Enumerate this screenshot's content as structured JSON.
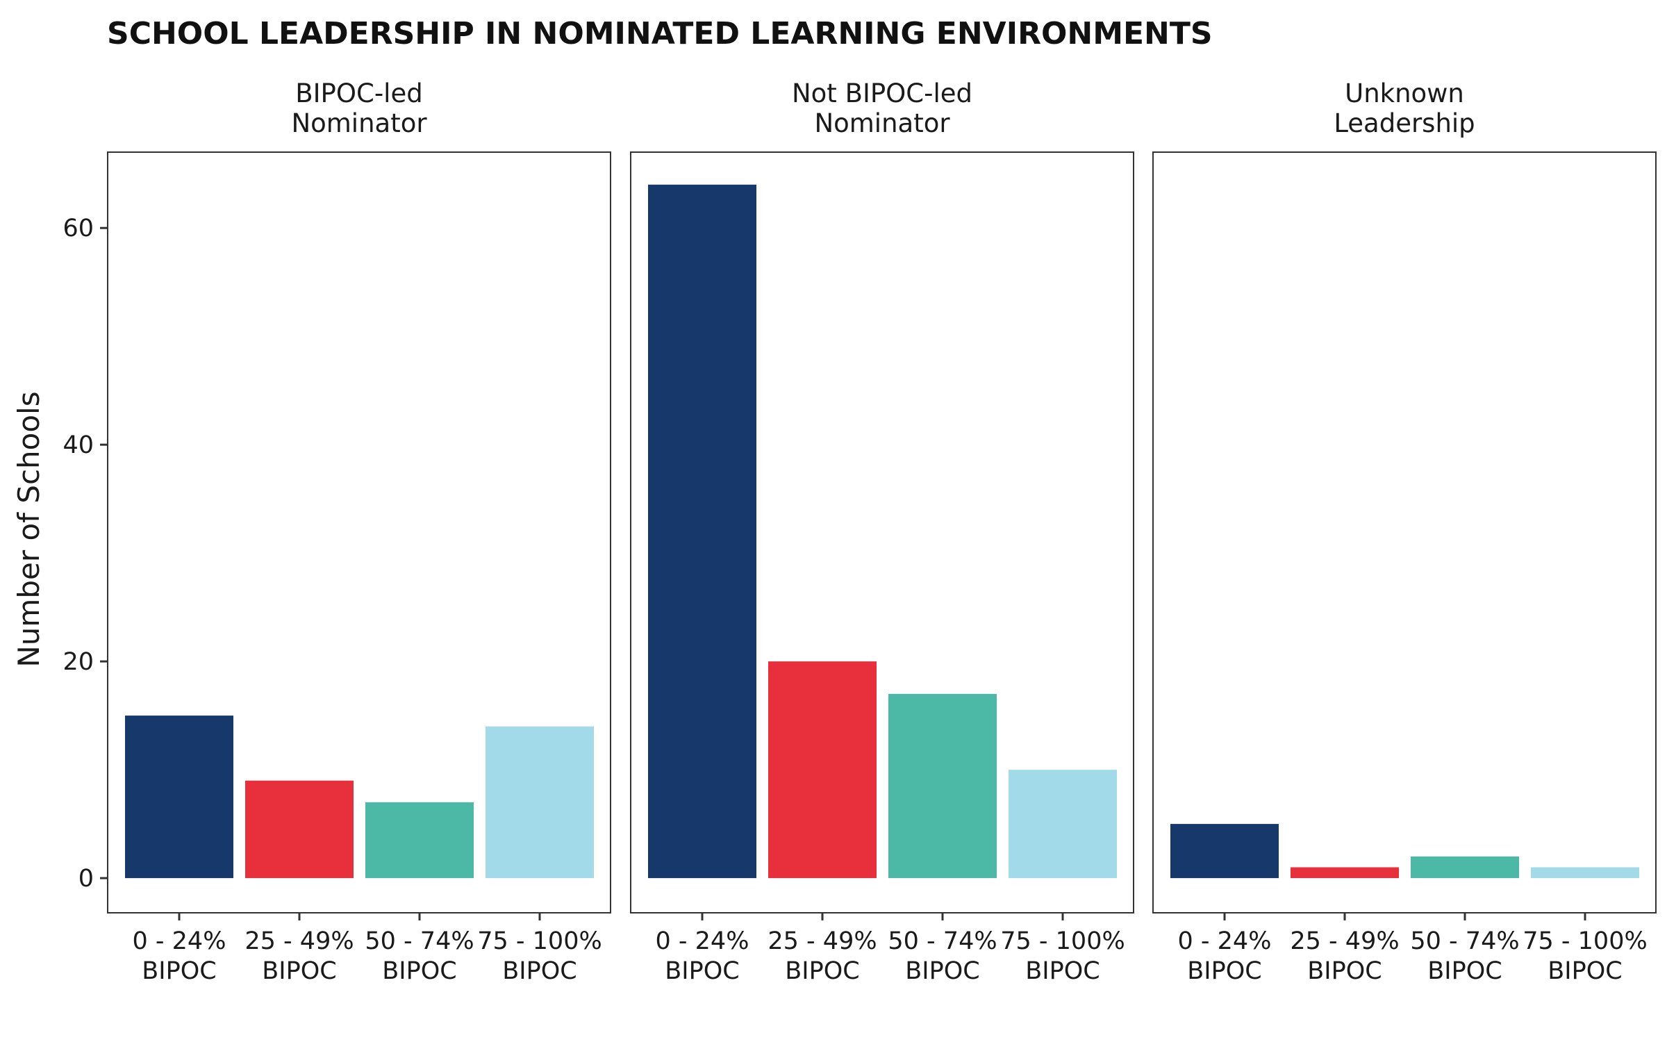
{
  "colors": {
    "0 - 24% BIPOC": "#17386b",
    "25 - 49% BIPOC": "#e8303c",
    "50 - 74% BIPOC": "#4cb8a6",
    "75 - 100% BIPOC": "#a3dae9"
  },
  "chart_data": {
    "type": "bar",
    "title": "SCHOOL LEADERSHIP IN NOMINATED LEARNING ENVIRONMENTS",
    "xlabel": "",
    "ylabel": "Number of Schools",
    "ylim": [
      -3.2,
      67
    ],
    "yticks": [
      0,
      20,
      40,
      60
    ],
    "grid": false,
    "legend": "none",
    "categories": [
      "0 - 24% BIPOC",
      "25 - 49% BIPOC",
      "50 - 74% BIPOC",
      "75 - 100% BIPOC"
    ],
    "category_label_lines": [
      [
        "0 - 24%",
        "BIPOC"
      ],
      [
        "25 - 49%",
        "BIPOC"
      ],
      [
        "50 - 74%",
        "BIPOC"
      ],
      [
        "75 - 100%",
        "BIPOC"
      ]
    ],
    "panels": [
      {
        "label_lines": [
          "BIPOC-led",
          "Nominator"
        ],
        "values": [
          15,
          9,
          7,
          14
        ]
      },
      {
        "label_lines": [
          "Not BIPOC-led",
          "Nominator"
        ],
        "values": [
          64,
          20,
          17,
          10
        ]
      },
      {
        "label_lines": [
          "Unknown",
          "Leadership"
        ],
        "values": [
          5,
          1,
          2,
          1
        ]
      }
    ]
  }
}
